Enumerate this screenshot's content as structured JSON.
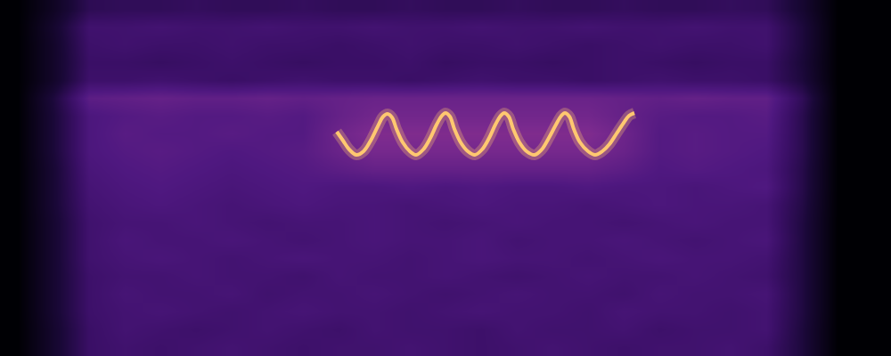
{
  "chart_data": {
    "type": "heatmap",
    "tick_labels": false,
    "grid": false,
    "xlim": [
      0,
      1000
    ],
    "ylim": [
      0,
      400
    ],
    "zlim": [
      0,
      100
    ],
    "x": [
      20,
      60,
      100,
      140,
      180,
      220,
      260,
      300,
      340,
      380,
      420,
      460,
      500,
      540,
      580,
      620,
      660,
      700,
      740,
      780,
      820,
      860,
      900,
      940,
      980
    ],
    "y": [
      10,
      30,
      50,
      70,
      90,
      110,
      130,
      150,
      170,
      190,
      210,
      230,
      250,
      270,
      290,
      310,
      330,
      350,
      370,
      390
    ],
    "z": [
      [
        0,
        12,
        25,
        27,
        26,
        27,
        28,
        27,
        26,
        27,
        27,
        28,
        27,
        26,
        27,
        28,
        27,
        26,
        27,
        27,
        28,
        26,
        16,
        0,
        0
      ],
      [
        0,
        12,
        25,
        28,
        27,
        26,
        27,
        28,
        27,
        26,
        28,
        27,
        27,
        26,
        28,
        27,
        27,
        28,
        26,
        27,
        27,
        28,
        16,
        0,
        0
      ],
      [
        0,
        13,
        26,
        28,
        29,
        28,
        27,
        28,
        29,
        28,
        28,
        27,
        28,
        29,
        28,
        28,
        27,
        29,
        28,
        28,
        27,
        28,
        17,
        0,
        0
      ],
      [
        0,
        13,
        26,
        29,
        28,
        28,
        29,
        27,
        28,
        28,
        29,
        28,
        27,
        28,
        29,
        28,
        28,
        27,
        29,
        28,
        28,
        29,
        17,
        0,
        0
      ],
      [
        0,
        13,
        26,
        28,
        28,
        29,
        28,
        28,
        27,
        29,
        28,
        28,
        29,
        28,
        27,
        28,
        29,
        28,
        28,
        29,
        28,
        27,
        17,
        0,
        0
      ],
      [
        0,
        13,
        27,
        29,
        30,
        29,
        28,
        29,
        30,
        29,
        29,
        28,
        29,
        30,
        29,
        29,
        28,
        29,
        30,
        29,
        29,
        28,
        17,
        0,
        0
      ],
      [
        0,
        13,
        27,
        30,
        29,
        29,
        30,
        29,
        28,
        29,
        30,
        29,
        29,
        30,
        28,
        29,
        29,
        30,
        29,
        28,
        29,
        30,
        17,
        0,
        0
      ],
      [
        0,
        13,
        27,
        29,
        29,
        30,
        29,
        28,
        29,
        29,
        30,
        29,
        28,
        29,
        30,
        29,
        29,
        28,
        29,
        30,
        29,
        29,
        17,
        0,
        0
      ],
      [
        0,
        14,
        28,
        30,
        31,
        30,
        29,
        30,
        31,
        30,
        30,
        29,
        30,
        31,
        30,
        30,
        29,
        30,
        31,
        30,
        30,
        29,
        18,
        0,
        0
      ],
      [
        0,
        14,
        29,
        31,
        32,
        31,
        30,
        31,
        32,
        31,
        31,
        32,
        31,
        32,
        31,
        31,
        32,
        31,
        31,
        30,
        31,
        32,
        19,
        0,
        0
      ],
      [
        0,
        14,
        30,
        32,
        33,
        32,
        31,
        32,
        33,
        35,
        37,
        37,
        37,
        37,
        37,
        37,
        37,
        35,
        32,
        33,
        32,
        31,
        19,
        0,
        0
      ],
      [
        0,
        15,
        31,
        33,
        34,
        33,
        32,
        33,
        34,
        38,
        41,
        41,
        41,
        41,
        41,
        41,
        41,
        38,
        33,
        34,
        33,
        32,
        20,
        0,
        0
      ],
      [
        0,
        15,
        31,
        34,
        33,
        33,
        34,
        33,
        33,
        39,
        43,
        43,
        43,
        43,
        43,
        43,
        43,
        39,
        33,
        34,
        33,
        33,
        20,
        0,
        0
      ],
      [
        0,
        15,
        31,
        33,
        34,
        33,
        33,
        34,
        33,
        37,
        40,
        40,
        40,
        40,
        40,
        40,
        40,
        37,
        34,
        33,
        33,
        34,
        20,
        0,
        0
      ],
      [
        0,
        16,
        35,
        36,
        37,
        36,
        36,
        37,
        36,
        37,
        38,
        38,
        38,
        38,
        38,
        38,
        38,
        37,
        36,
        37,
        36,
        36,
        22,
        0,
        0
      ],
      [
        0,
        11,
        26,
        26,
        27,
        26,
        25,
        26,
        27,
        26,
        26,
        25,
        26,
        27,
        26,
        26,
        25,
        26,
        27,
        26,
        26,
        25,
        16,
        0,
        0
      ],
      [
        0,
        11,
        25,
        25,
        24,
        25,
        26,
        25,
        24,
        25,
        25,
        26,
        24,
        25,
        25,
        24,
        25,
        26,
        25,
        24,
        25,
        25,
        15,
        0,
        0
      ],
      [
        0,
        11,
        26,
        27,
        26,
        26,
        27,
        26,
        26,
        25,
        26,
        27,
        26,
        26,
        27,
        26,
        25,
        26,
        27,
        26,
        26,
        27,
        16,
        0,
        0
      ],
      [
        0,
        12,
        27,
        27,
        28,
        27,
        27,
        28,
        27,
        27,
        28,
        27,
        27,
        28,
        27,
        27,
        28,
        27,
        27,
        28,
        27,
        27,
        16,
        0,
        0
      ],
      [
        0,
        9,
        21,
        22,
        22,
        23,
        22,
        22,
        23,
        22,
        22,
        23,
        22,
        22,
        23,
        22,
        22,
        23,
        22,
        22,
        23,
        22,
        13,
        0,
        0
      ]
    ],
    "series": [
      {
        "type": "line",
        "color": "#ffc870",
        "x": [
          378,
          385,
          392,
          400,
          408,
          416,
          424,
          430,
          435,
          440,
          445,
          452,
          460,
          467,
          475,
          483,
          490,
          496,
          500,
          505,
          510,
          517,
          525,
          533,
          541,
          549,
          556,
          562,
          566,
          571,
          576,
          583,
          591,
          600,
          608,
          616,
          624,
          630,
          634,
          639,
          644,
          651,
          660,
          668,
          676,
          684,
          692,
          700,
          706,
          712
        ],
        "values": [
          252,
          242,
          232,
          226,
          230,
          242,
          258,
          269,
          272,
          268,
          255,
          240,
          230,
          226,
          232,
          245,
          260,
          270,
          273,
          269,
          255,
          240,
          230,
          226,
          232,
          245,
          260,
          270,
          273,
          269,
          255,
          240,
          230,
          226,
          232,
          245,
          260,
          270,
          273,
          269,
          255,
          240,
          230,
          226,
          230,
          238,
          250,
          262,
          270,
          273
        ]
      }
    ]
  }
}
